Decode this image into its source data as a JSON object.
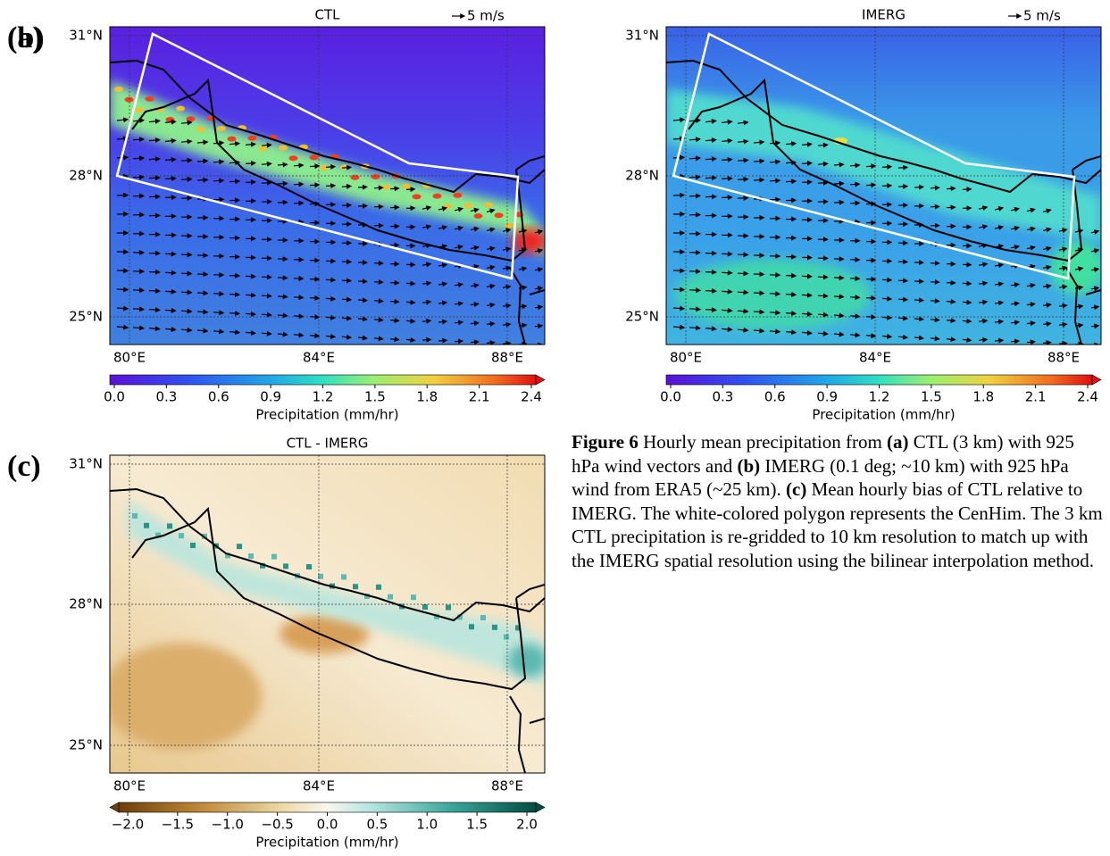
{
  "panels": [
    {
      "label": "(a)",
      "title": "CTL",
      "wind_key": "5 m/s",
      "lat_ticks": [
        "31°N",
        "28°N",
        "25°N"
      ],
      "lon_ticks": [
        "80°E",
        "84°E",
        "88°E"
      ],
      "colorbar": {
        "ticks": [
          "0.0",
          "0.3",
          "0.6",
          "0.9",
          "1.2",
          "1.5",
          "1.8",
          "2.1",
          "2.4"
        ],
        "label": "Precipitation (mm/hr)"
      }
    },
    {
      "label": "(b)",
      "title": "IMERG",
      "wind_key": "5 m/s",
      "lat_ticks": [
        "31°N",
        "28°N",
        "25°N"
      ],
      "lon_ticks": [
        "80°E",
        "84°E",
        "88°E"
      ],
      "colorbar": {
        "ticks": [
          "0.0",
          "0.3",
          "0.6",
          "0.9",
          "1.2",
          "1.5",
          "1.8",
          "2.1",
          "2.4"
        ],
        "label": "Precipitation (mm/hr)"
      }
    },
    {
      "label": "(c)",
      "title": "CTL - IMERG",
      "lat_ticks": [
        "31°N",
        "28°N",
        "25°N"
      ],
      "lon_ticks": [
        "80°E",
        "84°E",
        "88°E"
      ],
      "colorbar": {
        "ticks": [
          "−2.0",
          "−1.5",
          "−1.0",
          "−0.5",
          "0.0",
          "0.5",
          "1.0",
          "1.5",
          "2.0"
        ],
        "label": "Precipitation (mm/hr)"
      }
    }
  ],
  "caption": [
    {
      "text": "Figure 6",
      "bold": true
    },
    {
      "text": " Hourly mean precipitation from ",
      "bold": false
    },
    {
      "text": "(a)",
      "bold": true
    },
    {
      "text": " CTL (3 km) with 925 hPa wind vectors and ",
      "bold": false
    },
    {
      "text": "(b)",
      "bold": true
    },
    {
      "text": " IMERG (0.1 deg; ~10 km) with 925 hPa wind from ERA5 (~25 km). ",
      "bold": false
    },
    {
      "text": "(c)",
      "bold": true
    },
    {
      "text": " Mean hourly bias of CTL relative to IMERG. The white-colored polygon represents the CenHim. The 3 km CTL precipitation is re-gridded to 10 km resolution to match up with the IMERG spatial resolution using the bilinear interpolation method.",
      "bold": false
    }
  ]
}
